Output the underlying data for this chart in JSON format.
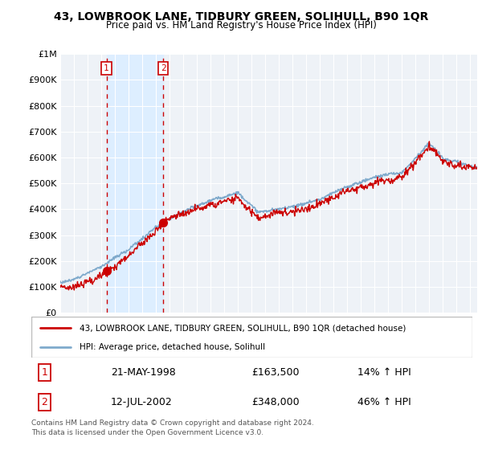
{
  "title": "43, LOWBROOK LANE, TIDBURY GREEN, SOLIHULL, B90 1QR",
  "subtitle": "Price paid vs. HM Land Registry's House Price Index (HPI)",
  "ylim": [
    0,
    1000000
  ],
  "yticks": [
    0,
    100000,
    200000,
    300000,
    400000,
    500000,
    600000,
    700000,
    800000,
    900000,
    1000000
  ],
  "sale1_date": 1998.38,
  "sale1_price": 163500,
  "sale2_date": 2002.53,
  "sale2_price": 348000,
  "sale_color": "#cc0000",
  "hpi_color": "#7faacc",
  "price_color": "#cc0000",
  "shade_color": "#ddeeff",
  "legend_entry1": "43, LOWBROOK LANE, TIDBURY GREEN, SOLIHULL, B90 1QR (detached house)",
  "legend_entry2": "HPI: Average price, detached house, Solihull",
  "table_row1": [
    "1",
    "21-MAY-1998",
    "£163,500",
    "14% ↑ HPI"
  ],
  "table_row2": [
    "2",
    "12-JUL-2002",
    "£348,000",
    "46% ↑ HPI"
  ],
  "footnote": "Contains HM Land Registry data © Crown copyright and database right 2024.\nThis data is licensed under the Open Government Licence v3.0.",
  "bg_color": "#ffffff",
  "plot_bg_color": "#eef2f7",
  "grid_color": "#ffffff",
  "xmin": 1995.0,
  "xmax": 2025.5
}
